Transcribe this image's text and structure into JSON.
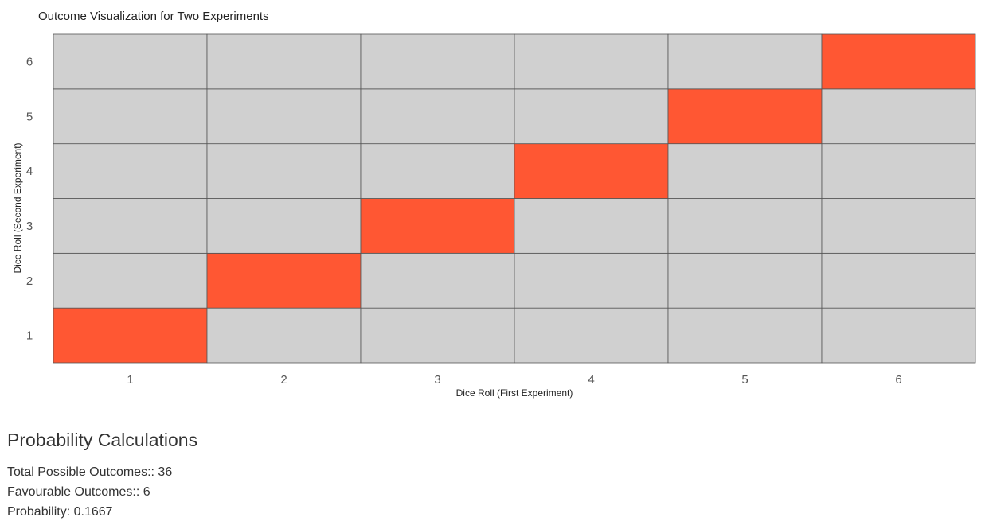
{
  "chart_data": {
    "type": "heatmap",
    "title": "Outcome Visualization for Two Experiments",
    "xlabel": "Dice Roll (First Experiment)",
    "ylabel": "Dice Roll (Second Experiment)",
    "x_categories": [
      "1",
      "2",
      "3",
      "4",
      "5",
      "6"
    ],
    "y_categories": [
      "1",
      "2",
      "3",
      "4",
      "5",
      "6"
    ],
    "favourable_cells": [
      [
        1,
        1
      ],
      [
        2,
        2
      ],
      [
        3,
        3
      ],
      [
        4,
        4
      ],
      [
        5,
        5
      ],
      [
        6,
        6
      ]
    ],
    "colors": {
      "favourable": "#ff5733",
      "other": "#d0d0d0",
      "border": "#555555"
    },
    "grid": true
  },
  "calculations": {
    "heading": "Probability Calculations",
    "total_label": "Total Possible Outcomes::",
    "total_value": "36",
    "favourable_label": "Favourable Outcomes::",
    "favourable_value": "6",
    "probability_label": "Probability:",
    "probability_value": "0.1667"
  }
}
